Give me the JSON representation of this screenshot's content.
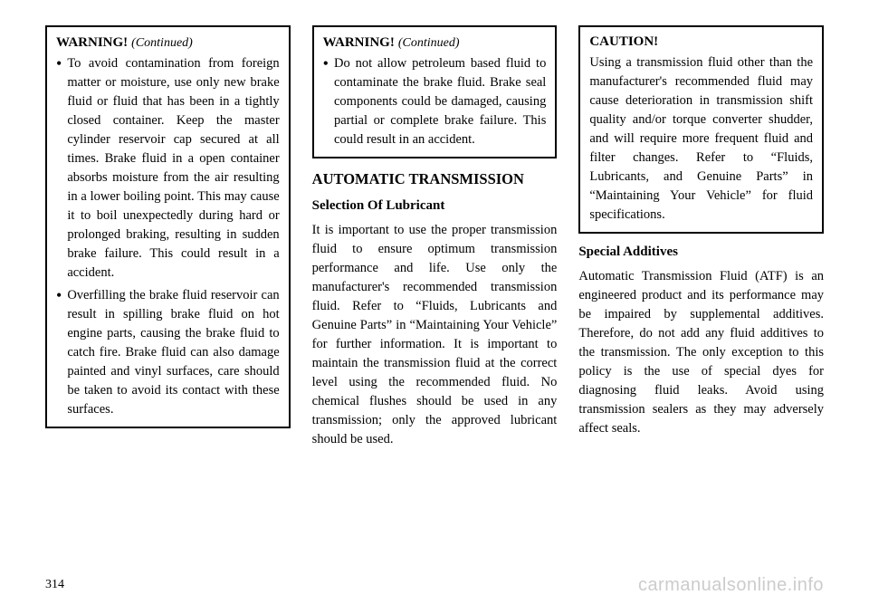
{
  "page_number": "314",
  "watermark": "carmanualsonline.info",
  "columns": {
    "col1": {
      "warning": {
        "title": "WARNING!",
        "continued": "(Continued)",
        "items": [
          "To avoid contamination from foreign matter or moisture, use only new brake fluid or fluid that has been in a tightly closed container. Keep the master cylinder reservoir cap secured at all times. Brake fluid in a open container absorbs moisture from the air resulting in a lower boiling point. This may cause it to boil unexpectedly during hard or prolonged braking, resulting in sudden brake failure. This could result in a accident.",
          "Overfilling the brake fluid reservoir can result in spilling brake fluid on hot engine parts, causing the brake fluid to catch fire. Brake fluid can also damage painted and vinyl surfaces, care should be taken to avoid its contact with these surfaces."
        ]
      }
    },
    "col2": {
      "warning": {
        "title": "WARNING!",
        "continued": "(Continued)",
        "items": [
          "Do not allow petroleum based fluid to contaminate the brake fluid. Brake seal components could be damaged, causing partial or complete brake failure. This could result in an accident."
        ]
      },
      "section_heading": "AUTOMATIC TRANSMISSION",
      "subsection_heading": "Selection Of Lubricant",
      "body": "It is important to use the proper transmission fluid to ensure optimum transmission performance and life. Use only the manufacturer's recommended transmission fluid. Refer to “Fluids, Lubricants and Genuine Parts” in “Maintaining Your Vehicle” for further information. It is important to maintain the transmission fluid at the correct level using the recommended fluid. No chemical flushes should be used in any transmission; only the approved lubricant should be used."
    },
    "col3": {
      "caution": {
        "title": "CAUTION!",
        "text": "Using a transmission fluid other than the manufacturer's recommended fluid may cause deterioration in transmission shift quality and/or torque converter shudder, and will require more frequent fluid and filter changes. Refer to “Fluids, Lubricants, and Genuine Parts” in “Maintaining Your Vehicle” for fluid specifications."
      },
      "subsection_heading": "Special Additives",
      "body": "Automatic Transmission Fluid (ATF) is an engineered product and its performance may be impaired by supplemental additives. Therefore, do not add any fluid additives to the transmission. The only exception to this policy is the use of special dyes for diagnosing fluid leaks. Avoid using transmission sealers as they may adversely affect seals."
    }
  }
}
